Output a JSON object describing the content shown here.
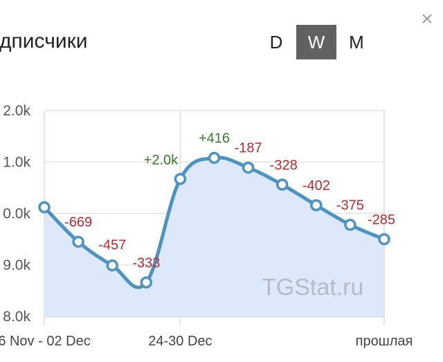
{
  "header": {
    "title": "одписчики",
    "periods": [
      "D",
      "W",
      "M"
    ],
    "active_period": "W",
    "close_icon": "×"
  },
  "watermark": "TGStat.ru",
  "colors": {
    "line": "#4a93c2",
    "area": "#dde9fb",
    "positive": "#3a7a2e",
    "negative": "#c0272d"
  },
  "chart_data": {
    "type": "area",
    "y_tick_labels": [
      "2.0k",
      "1.0k",
      "0.0k",
      "9.0k",
      "8.0k"
    ],
    "x_tick_labels": [
      "6 Nov - 02 Dec",
      "24-30 Dec",
      "прошлая"
    ],
    "ylim": [
      8.0,
      12.0
    ],
    "grid": true,
    "values": [
      10.12,
      9.45,
      8.99,
      8.66,
      10.67,
      11.08,
      10.89,
      10.56,
      10.16,
      9.78,
      9.5
    ],
    "deltas": [
      "",
      "-669",
      "-457",
      "-333",
      "+2.0k",
      "+416",
      "-187",
      "-328",
      "-402",
      "-375",
      "-285"
    ]
  }
}
